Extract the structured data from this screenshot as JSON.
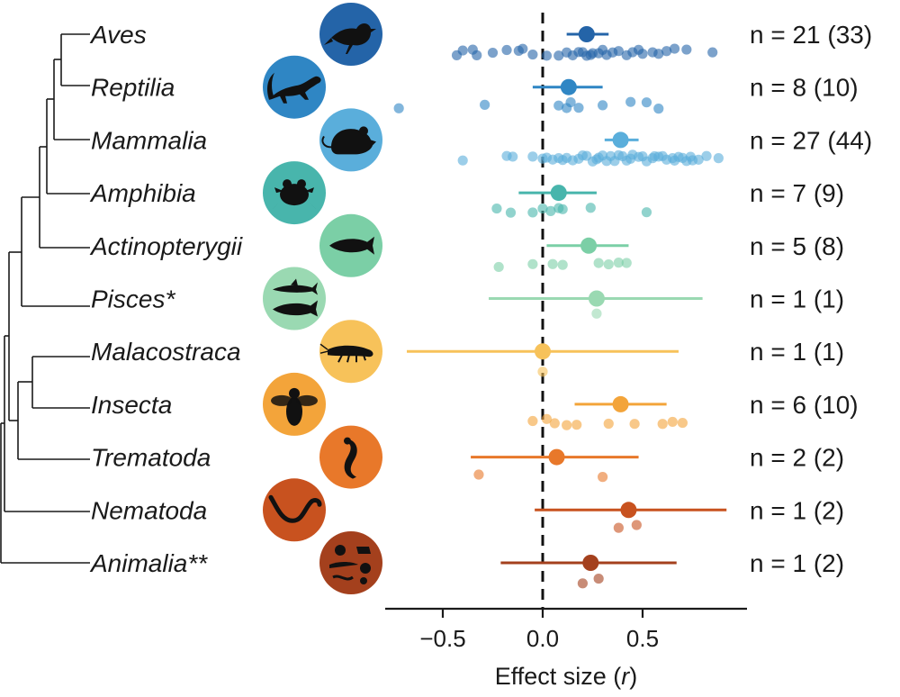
{
  "chart_data": {
    "type": "forest-plot",
    "xlabel": "Effect size",
    "xlabel_var": "r",
    "xlim": [
      -0.75,
      0.95
    ],
    "xticks": [
      -0.5,
      0.0,
      0.5
    ],
    "xtick_labels": [
      "−0.5",
      "0.0",
      "0.5"
    ],
    "reference_line": 0,
    "rows": [
      {
        "taxon": "Aves",
        "n_label": "n = 21 (33)",
        "color": "#2464a8",
        "estimate": 0.22,
        "ci": [
          0.12,
          0.33
        ],
        "icon": "bird-icon",
        "points": [
          -0.43,
          -0.4,
          -0.33,
          -0.25,
          -0.18,
          -0.1,
          -0.05,
          0.02,
          0.08,
          0.12,
          0.15,
          0.2,
          0.22,
          0.25,
          0.28,
          0.3,
          0.35,
          0.38,
          0.42,
          0.48,
          0.55,
          0.62,
          0.72,
          0.85,
          -0.35,
          -0.12,
          0.18,
          0.24,
          0.32,
          0.45,
          0.5,
          0.58,
          0.66
        ]
      },
      {
        "taxon": "Reptilia",
        "n_label": "n = 8 (10)",
        "color": "#2f86c4",
        "estimate": 0.13,
        "ci": [
          -0.05,
          0.3
        ],
        "icon": "lizard-icon",
        "points": [
          -0.72,
          -0.29,
          0.08,
          0.12,
          0.14,
          0.18,
          0.3,
          0.44,
          0.52,
          0.58
        ]
      },
      {
        "taxon": "Mammalia",
        "n_label": "n = 27 (44)",
        "color": "#5aaedb",
        "estimate": 0.39,
        "ci": [
          0.31,
          0.48
        ],
        "icon": "rodent-icon",
        "points": [
          -0.4,
          -0.18,
          -0.15,
          -0.05,
          0.0,
          0.02,
          0.05,
          0.08,
          0.1,
          0.12,
          0.15,
          0.18,
          0.2,
          0.22,
          0.25,
          0.27,
          0.3,
          0.32,
          0.34,
          0.36,
          0.38,
          0.4,
          0.42,
          0.45,
          0.48,
          0.5,
          0.52,
          0.55,
          0.58,
          0.6,
          0.62,
          0.65,
          0.68,
          0.7,
          0.72,
          0.75,
          0.78,
          0.82,
          0.88,
          0.28,
          0.44,
          0.56,
          0.66,
          0.74
        ]
      },
      {
        "taxon": "Amphibia",
        "n_label": "n = 7 (9)",
        "color": "#48b5ac",
        "estimate": 0.08,
        "ci": [
          -0.12,
          0.27
        ],
        "icon": "frog-icon",
        "points": [
          -0.23,
          -0.16,
          -0.05,
          0.0,
          0.04,
          0.08,
          0.1,
          0.24,
          0.52
        ]
      },
      {
        "taxon": "Actinopterygii",
        "n_label": "n = 5 (8)",
        "color": "#7bcfa6",
        "estimate": 0.23,
        "ci": [
          0.02,
          0.43
        ],
        "icon": "fish-icon",
        "points": [
          -0.22,
          -0.05,
          0.05,
          0.1,
          0.28,
          0.33,
          0.38,
          0.42
        ]
      },
      {
        "taxon": "Pisces*",
        "n_label": "n = 1 (1)",
        "color": "#9ad9b2",
        "estimate": 0.27,
        "ci": [
          -0.27,
          0.8
        ],
        "icon": "sharks-icon",
        "points": [
          0.27
        ]
      },
      {
        "taxon": "Malacostraca",
        "n_label": "n = 1 (1)",
        "color": "#f7c25a",
        "estimate": 0.0,
        "ci": [
          -0.68,
          0.68
        ],
        "icon": "shrimp-icon",
        "points": [
          0.0
        ]
      },
      {
        "taxon": "Insecta",
        "n_label": "n = 6 (10)",
        "color": "#f3a43a",
        "estimate": 0.39,
        "ci": [
          0.16,
          0.62
        ],
        "icon": "bee-icon",
        "points": [
          -0.05,
          0.02,
          0.06,
          0.12,
          0.17,
          0.33,
          0.46,
          0.6,
          0.65,
          0.7
        ]
      },
      {
        "taxon": "Trematoda",
        "n_label": "n = 2 (2)",
        "color": "#e8782a",
        "estimate": 0.07,
        "ci": [
          -0.36,
          0.48
        ],
        "icon": "fluke-icon",
        "points": [
          -0.32,
          0.3
        ]
      },
      {
        "taxon": "Nematoda",
        "n_label": "n = 1 (2)",
        "color": "#c8521f",
        "estimate": 0.43,
        "ci": [
          -0.04,
          0.92
        ],
        "icon": "worm-icon",
        "points": [
          0.38,
          0.47
        ]
      },
      {
        "taxon": "Animalia**",
        "n_label": "n = 1 (2)",
        "color": "#a4401d",
        "estimate": 0.24,
        "ci": [
          -0.21,
          0.67
        ],
        "icon": "animals-collage-icon",
        "points": [
          0.2,
          0.28
        ]
      }
    ]
  }
}
